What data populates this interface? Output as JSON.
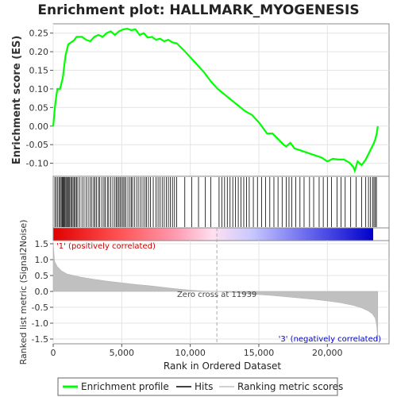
{
  "chart_data": {
    "type": "line",
    "title": "Enrichment plot: HALLMARK_MYOGENESIS",
    "colors": {
      "enrichment": "#00ff00",
      "hits": "#000000",
      "metric": "#c0c0c0"
    },
    "enrichment_panel": {
      "ylabel": "Enrichment score (ES)",
      "yticks": [
        0.25,
        0.2,
        0.15,
        0.1,
        0.05,
        0.0,
        -0.05,
        -0.1
      ],
      "ytick_labels": [
        "0.25",
        "0.20",
        "0.15",
        "0.10",
        "0.05",
        "0.00",
        "-0.05",
        "-0.10"
      ],
      "ylim": [
        -0.135,
        0.275
      ],
      "x": [
        0,
        150,
        300,
        500,
        700,
        900,
        1100,
        1300,
        1500,
        1700,
        1900,
        2100,
        2400,
        2700,
        3000,
        3300,
        3600,
        3900,
        4200,
        4500,
        4800,
        5100,
        5400,
        5700,
        6000,
        6300,
        6600,
        6900,
        7200,
        7500,
        7800,
        8100,
        8400,
        8700,
        9000,
        9500,
        10000,
        10500,
        11000,
        11500,
        12000,
        12500,
        13000,
        13500,
        14000,
        14500,
        15000,
        15300,
        15600,
        16000,
        16400,
        16800,
        17000,
        17300,
        17600,
        18000,
        18400,
        18800,
        19200,
        19600,
        20000,
        20400,
        20800,
        21200,
        21600,
        21900,
        22000,
        22200,
        22500,
        22800,
        23000,
        23200,
        23400,
        23500,
        23600,
        23680
      ],
      "es": [
        0.0,
        0.06,
        0.1,
        0.1,
        0.13,
        0.19,
        0.22,
        0.225,
        0.23,
        0.24,
        0.24,
        0.24,
        0.232,
        0.228,
        0.24,
        0.245,
        0.24,
        0.25,
        0.255,
        0.245,
        0.255,
        0.26,
        0.262,
        0.258,
        0.26,
        0.245,
        0.25,
        0.238,
        0.24,
        0.232,
        0.235,
        0.228,
        0.232,
        0.225,
        0.223,
        0.205,
        0.185,
        0.165,
        0.145,
        0.12,
        0.1,
        0.085,
        0.07,
        0.055,
        0.04,
        0.03,
        0.01,
        -0.005,
        -0.02,
        -0.02,
        -0.035,
        -0.05,
        -0.055,
        -0.045,
        -0.06,
        -0.065,
        -0.07,
        -0.075,
        -0.08,
        -0.085,
        -0.095,
        -0.088,
        -0.09,
        -0.09,
        -0.098,
        -0.11,
        -0.12,
        -0.095,
        -0.105,
        -0.09,
        -0.075,
        -0.06,
        -0.045,
        -0.035,
        -0.02,
        0.0
      ]
    },
    "ranked_panel": {
      "ylabel": "Ranked list metric (Signal2Noise)",
      "yticks": [
        1.5,
        1.0,
        0.5,
        0.0,
        -0.5,
        -1.0,
        -1.5
      ],
      "ytick_labels": [
        "1.5",
        "1.0",
        "0.5",
        "0.0",
        "-0.5",
        "-1.0",
        "-1.5"
      ],
      "ylim": [
        -1.65,
        1.6
      ],
      "x": [
        0,
        100,
        300,
        600,
        1000,
        2000,
        3000,
        4000,
        5000,
        6000,
        7000,
        8000,
        9000,
        10000,
        11000,
        11939,
        13000,
        14000,
        15000,
        16000,
        17000,
        18000,
        19000,
        20000,
        21000,
        22000,
        22500,
        23000,
        23300,
        23500,
        23600,
        23680
      ],
      "metric": [
        1.55,
        0.95,
        0.78,
        0.65,
        0.55,
        0.45,
        0.38,
        0.32,
        0.27,
        0.22,
        0.18,
        0.13,
        0.08,
        0.04,
        0.01,
        0.0,
        -0.03,
        -0.07,
        -0.1,
        -0.13,
        -0.17,
        -0.21,
        -0.25,
        -0.3,
        -0.36,
        -0.45,
        -0.52,
        -0.62,
        -0.72,
        -0.85,
        -1.1,
        -1.55
      ],
      "positive_label": "'1' (positively correlated)",
      "negative_label": "'3' (negatively correlated)",
      "zero_cross_label": "Zero cross at 11939",
      "zero_cross": 11939
    },
    "hits": [
      120,
      220,
      330,
      430,
      520,
      590,
      660,
      720,
      790,
      850,
      920,
      990,
      1050,
      1120,
      1200,
      1280,
      1360,
      1450,
      1540,
      1620,
      1700,
      1800,
      1950,
      2100,
      2250,
      2400,
      2550,
      2700,
      2820,
      2950,
      3050,
      3150,
      3300,
      3400,
      3550,
      3700,
      3800,
      3950,
      4050,
      4200,
      4350,
      4500,
      4600,
      4700,
      4800,
      4900,
      5000,
      5100,
      5200,
      5300,
      5450,
      5600,
      5700,
      5800,
      5950,
      6100,
      6250,
      6400,
      6550,
      6700,
      6800,
      6950,
      7100,
      7300,
      7500,
      7650,
      7800,
      7950,
      8100,
      8250,
      8400,
      8550,
      8700,
      8850,
      9000,
      9600,
      10100,
      10600,
      11100,
      11500,
      12100,
      12300,
      12500,
      12700,
      12900,
      13100,
      13300,
      13500,
      13700,
      13900,
      14100,
      14300,
      14600,
      14900,
      15200,
      15500,
      15800,
      16100,
      16400,
      16700,
      17000,
      17200,
      17400,
      17700,
      18000,
      18300,
      18700,
      19000,
      19400,
      19700,
      20000,
      20300,
      20700,
      21000,
      21300,
      21700,
      22100,
      22500,
      22800,
      23000,
      23150,
      23300,
      23400,
      23500,
      23580
    ],
    "xaxis": {
      "xlabel": "Rank in Ordered Dataset",
      "xlim": [
        0,
        24500
      ],
      "xticks": [
        0,
        5000,
        10000,
        15000,
        20000
      ],
      "xtick_labels": [
        "0",
        "5,000",
        "10,000",
        "15,000",
        "20,000"
      ]
    },
    "legend": {
      "placement": "bottom",
      "items": [
        {
          "label": "Enrichment profile",
          "color": "#00ff00"
        },
        {
          "label": "Hits",
          "color": "#000000"
        },
        {
          "label": "Ranking metric scores",
          "color": "#c0c0c0"
        }
      ]
    }
  }
}
